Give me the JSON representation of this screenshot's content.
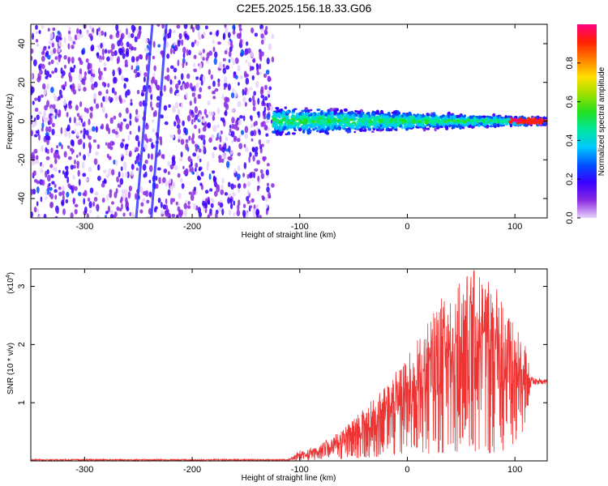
{
  "title": "C2E5.2025.156.18.33.G06",
  "chart_data": [
    {
      "type": "heatmap",
      "xlabel": "Height of straight line (km)",
      "ylabel": "Frequency (Hz)",
      "xlim": [
        -350,
        130
      ],
      "ylim": [
        -50,
        50
      ],
      "xticks": [
        -300,
        -200,
        -100,
        0,
        100
      ],
      "yticks": [
        -40,
        -20,
        0,
        20,
        40
      ],
      "colorbar": {
        "label": "Normalized spectral amplitude",
        "range": [
          0,
          1
        ],
        "ticks": [
          "0.0",
          "0.2",
          "0.4",
          "0.6",
          "0.8"
        ],
        "colors": [
          "#e8d2fb",
          "#8a2be2",
          "#3a00ff",
          "#0050ff",
          "#00c8ff",
          "#00e6a0",
          "#20e020",
          "#9be000",
          "#ffe000",
          "#ff8000",
          "#ff2000",
          "#ff0080"
        ]
      },
      "streaks": [
        {
          "x0": -252,
          "y0": -50,
          "x1": -237,
          "y1": 50
        },
        {
          "x0": -238,
          "y0": -50,
          "x1": -224,
          "y1": 50
        }
      ],
      "band": {
        "x_start": -125,
        "x_end": 130,
        "center_hz": 0,
        "halfwidth_hz_start": 8,
        "halfwidth_hz_end": 2
      }
    },
    {
      "type": "line",
      "xlabel": "Height of straight line (km)",
      "ylabel": "SNR (10 * v/v)",
      "scale_label": "(x10",
      "scale_exp": "4",
      "xlim": [
        -350,
        130
      ],
      "ylim": [
        0,
        3.3
      ],
      "xticks": [
        -300,
        -200,
        -100,
        0,
        100
      ],
      "yticks": [
        1,
        2,
        3
      ],
      "color": "#ee3333",
      "envelope": [
        {
          "x": -350,
          "lo": 0.0,
          "hi": 0.03
        },
        {
          "x": -110,
          "lo": 0.0,
          "hi": 0.03
        },
        {
          "x": -100,
          "lo": 0.0,
          "hi": 0.18
        },
        {
          "x": -80,
          "lo": 0.02,
          "hi": 0.3
        },
        {
          "x": -60,
          "lo": 0.03,
          "hi": 0.55
        },
        {
          "x": -40,
          "lo": 0.05,
          "hi": 0.9
        },
        {
          "x": -20,
          "lo": 0.08,
          "hi": 1.3
        },
        {
          "x": 0,
          "lo": 0.1,
          "hi": 1.8
        },
        {
          "x": 20,
          "lo": 0.12,
          "hi": 2.4
        },
        {
          "x": 40,
          "lo": 0.15,
          "hi": 3.1
        },
        {
          "x": 60,
          "lo": 0.15,
          "hi": 3.3
        },
        {
          "x": 80,
          "lo": 0.12,
          "hi": 3.2
        },
        {
          "x": 100,
          "lo": 0.2,
          "hi": 2.3
        },
        {
          "x": 110,
          "lo": 0.6,
          "hi": 2.0
        },
        {
          "x": 115,
          "lo": 1.3,
          "hi": 1.45
        },
        {
          "x": 130,
          "lo": 1.32,
          "hi": 1.4
        }
      ]
    }
  ]
}
